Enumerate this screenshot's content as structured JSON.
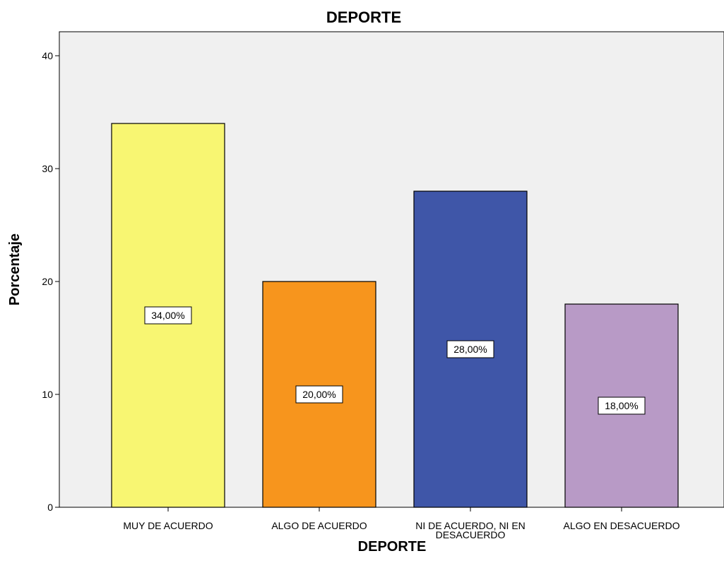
{
  "chart_data": {
    "type": "bar",
    "title": "DEPORTE",
    "xlabel": "DEPORTE",
    "ylabel": "Porcentaje",
    "ylim": [
      0,
      40
    ],
    "yticks": [
      0,
      10,
      20,
      30,
      40
    ],
    "grid": false,
    "categories": [
      "MUY DE ACUERDO",
      "ALGO DE ACUERDO",
      "NI DE ACUERDO, NI EN DESACUERDO",
      "ALGO EN DESACUERDO"
    ],
    "category_lines": [
      [
        "MUY DE ACUERDO"
      ],
      [
        "ALGO DE ACUERDO"
      ],
      [
        "NI DE ACUERDO, NI EN",
        "DESACUERDO"
      ],
      [
        "ALGO EN DESACUERDO"
      ]
    ],
    "values": [
      34,
      20,
      28,
      18
    ],
    "data_labels": [
      "34,00%",
      "20,00%",
      "28,00%",
      "18,00%"
    ],
    "colors": [
      "#f8f672",
      "#f7951d",
      "#3f56a8",
      "#b89ac6"
    ],
    "plot_background": "#f0f0f0"
  }
}
